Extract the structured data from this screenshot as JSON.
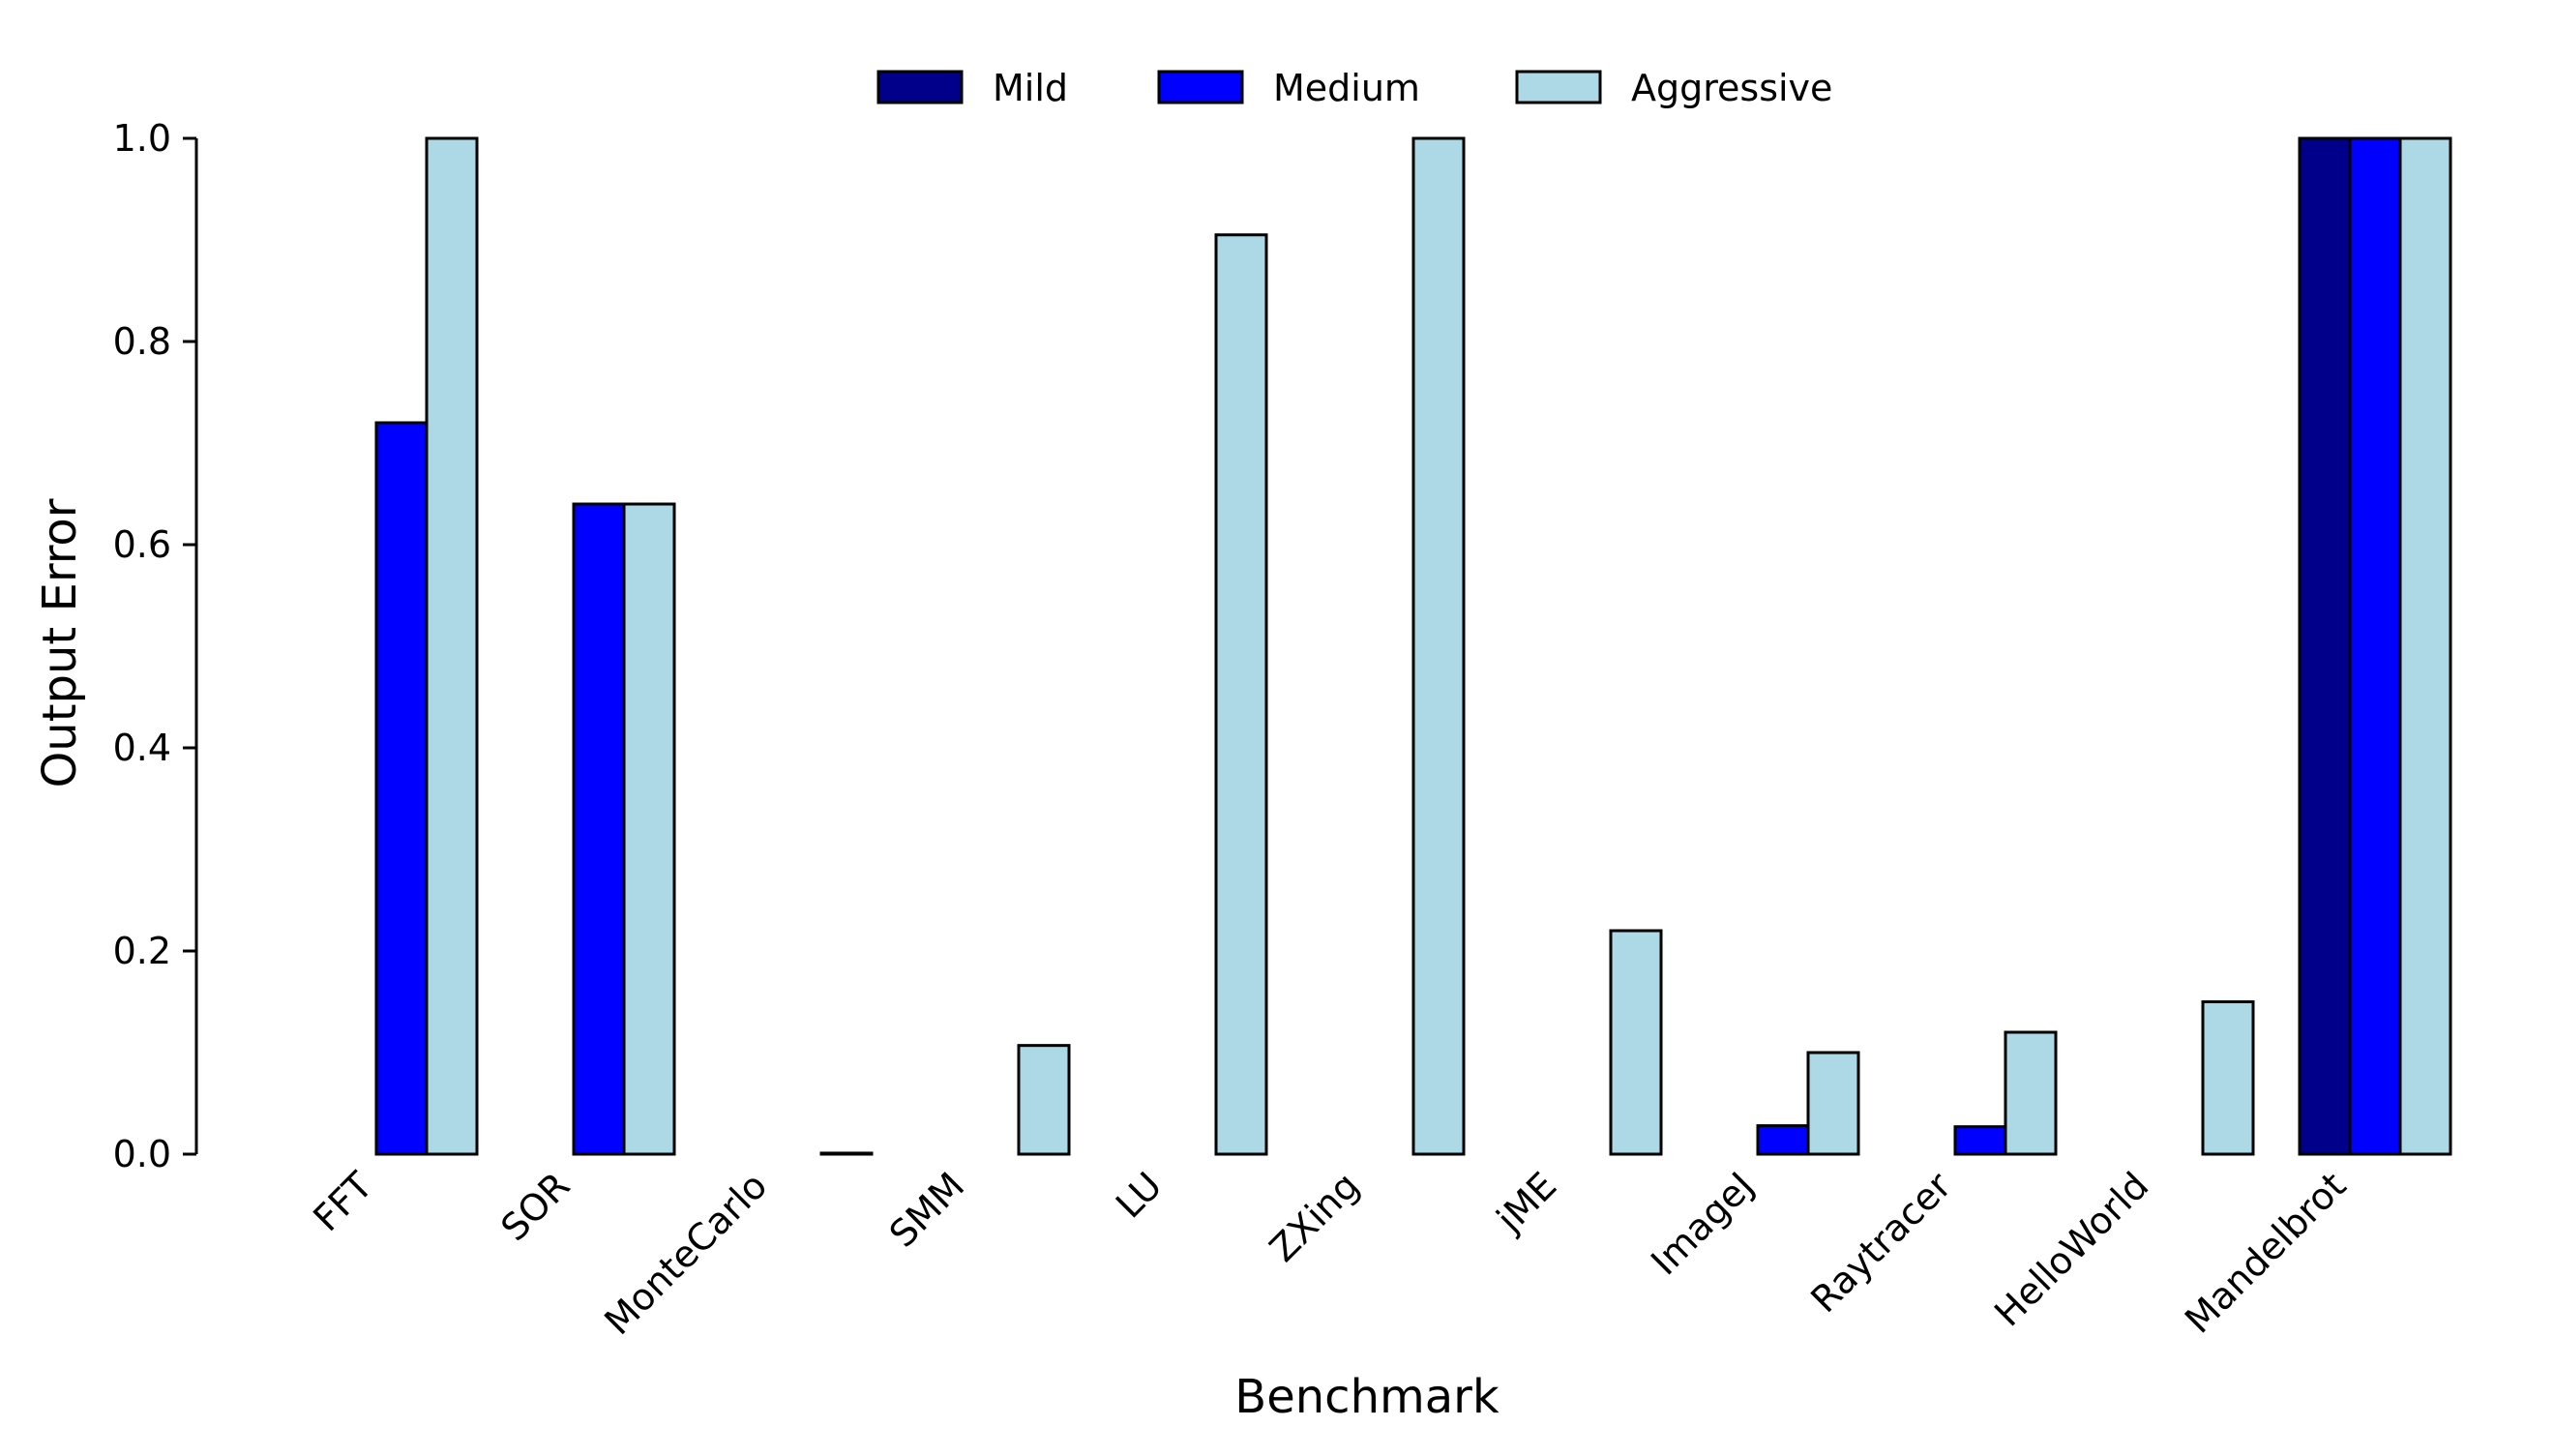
{
  "chart_data": {
    "type": "bar",
    "xlabel": "Benchmark",
    "ylabel": "Output Error",
    "ylim": [
      0,
      1.0
    ],
    "yticks": [
      "0.0",
      "0.2",
      "0.4",
      "0.6",
      "0.8",
      "1.0"
    ],
    "ytick_values": [
      0,
      0.2,
      0.4,
      0.6,
      0.8,
      1.0
    ],
    "categories": [
      "FFT",
      "SOR",
      "MonteCarlo",
      "SMM",
      "LU",
      "ZXing",
      "jME",
      "ImageJ",
      "Raytracer",
      "HelloWorld",
      "Mandelbrot"
    ],
    "series": [
      {
        "name": "Mild",
        "color": "#00008b",
        "values": [
          0,
          0,
          0,
          0,
          0,
          0,
          0,
          0,
          0,
          0,
          1.0
        ]
      },
      {
        "name": "Medium",
        "color": "#0000ff",
        "values": [
          0.72,
          0.64,
          0,
          0,
          0,
          0,
          0,
          0.028,
          0.027,
          0,
          1.0
        ]
      },
      {
        "name": "Aggressive",
        "color": "#add8e6",
        "values": [
          1.0,
          0.64,
          0.001,
          0.107,
          0.905,
          1.0,
          0.22,
          0.1,
          0.12,
          0.15,
          1.0
        ]
      }
    ],
    "legend": "top-center",
    "grid": false
  }
}
